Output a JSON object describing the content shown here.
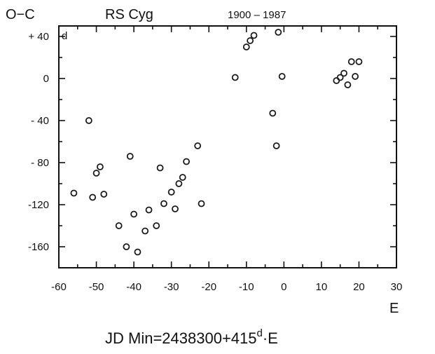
{
  "chart_data": {
    "type": "scatter",
    "title": "RS Cyg",
    "subtitle": "1900 – 1987",
    "ylabel": "O−C",
    "xlabel": "E",
    "y_unit": "d",
    "formula": "JD Min=2438300+415",
    "formula_unit": "d",
    "formula_tail": "·E",
    "xlim": [
      -60,
      30
    ],
    "ylim": [
      -180,
      50
    ],
    "x_ticks": [
      -60,
      -50,
      -40,
      -30,
      -20,
      -10,
      0,
      10,
      20,
      30
    ],
    "x_tick_labels": [
      "-60",
      "-50",
      "-40",
      "-30",
      "-20",
      "-10",
      "0",
      "10",
      "20",
      "30"
    ],
    "y_ticks": [
      40,
      0,
      -40,
      -80,
      -120,
      -160
    ],
    "y_tick_labels": [
      "+ 40",
      "0",
      "- 40",
      "- 80",
      "-120",
      "-160"
    ],
    "grid": false,
    "series": [
      {
        "points": [
          [
            -56,
            -109
          ],
          [
            -52,
            -40
          ],
          [
            -51,
            -113
          ],
          [
            -50,
            -90
          ],
          [
            -49,
            -84
          ],
          [
            -48,
            -110
          ],
          [
            -44,
            -140
          ],
          [
            -42,
            -160
          ],
          [
            -41,
            -74
          ],
          [
            -40,
            -129
          ],
          [
            -39,
            -165
          ],
          [
            -37,
            -145
          ],
          [
            -36,
            -125
          ],
          [
            -34,
            -140
          ],
          [
            -33,
            -85
          ],
          [
            -32,
            -119
          ],
          [
            -30,
            -108
          ],
          [
            -29,
            -124
          ],
          [
            -28,
            -100
          ],
          [
            -27,
            -94
          ],
          [
            -26,
            -79
          ],
          [
            -23,
            -64
          ],
          [
            -22,
            -119
          ],
          [
            -13,
            1
          ],
          [
            -10,
            30
          ],
          [
            -9,
            36
          ],
          [
            -8,
            41
          ],
          [
            -3,
            -33
          ],
          [
            -2,
            -64
          ],
          [
            -1.5,
            44
          ],
          [
            -0.5,
            2
          ],
          [
            14,
            -2
          ],
          [
            15,
            1
          ],
          [
            16,
            5
          ],
          [
            17,
            -6
          ],
          [
            18,
            16
          ],
          [
            19,
            2
          ],
          [
            20,
            16
          ]
        ]
      }
    ]
  }
}
